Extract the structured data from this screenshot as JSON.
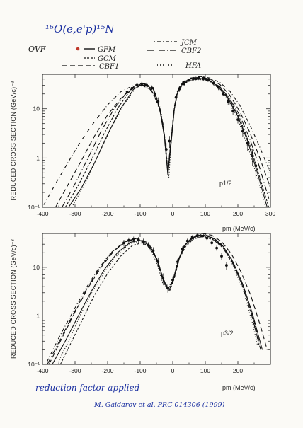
{
  "header": {
    "reaction_label": "¹⁶O(e,e'p)¹⁵N",
    "footer_note": "reduction factor applied",
    "citation": "M. Gaidarov et al. PRC 014306 (1999)"
  },
  "legend": {
    "items": [
      {
        "label": "OVF",
        "style": "point"
      },
      {
        "label": "GFM",
        "style": "solid"
      },
      {
        "label": "GCM",
        "style": "dashed"
      },
      {
        "label": "CBF1",
        "style": "longdash"
      },
      {
        "label": "JCM",
        "style": "dashdot"
      },
      {
        "label": "CBF2",
        "style": "longdashdot"
      },
      {
        "label": "HFA",
        "style": "dotted"
      }
    ]
  },
  "colors": {
    "ink": "#111111",
    "pen_blue": "#1a2fa0",
    "paper": "#fbfaf6",
    "data_point": "#c0392b"
  },
  "chart_data": [
    {
      "type": "line",
      "panel_label": "p1/2",
      "ylabel": "REDUCED CROSS SECTION (GeV/c)⁻³",
      "xlabel": "pm (MeV/c)",
      "y_scale": "log",
      "xlim": [
        -400,
        300
      ],
      "ylim": [
        0.1,
        50
      ],
      "x_ticks": [
        -400,
        -300,
        -200,
        -100,
        0,
        100,
        200,
        300
      ],
      "y_ticks": [
        {
          "v": 0.1,
          "label": "10⁻¹"
        },
        {
          "v": 1,
          "label": "1"
        },
        {
          "v": 10,
          "label": "10"
        }
      ],
      "series": [
        {
          "name": "GFM",
          "style": "solid",
          "x": [
            -320,
            -280,
            -240,
            -200,
            -160,
            -120,
            -90,
            -60,
            -40,
            -25,
            -15,
            -5,
            5,
            15,
            30,
            50,
            80,
            110,
            140,
            170,
            200,
            230,
            260,
            290
          ],
          "y": [
            0.1,
            0.25,
            0.8,
            3,
            10,
            25,
            32,
            25,
            10,
            2.5,
            0.45,
            2,
            10,
            22,
            33,
            40,
            42,
            38,
            28,
            16,
            7,
            2.2,
            0.5,
            0.1
          ]
        },
        {
          "name": "GCM",
          "style": "dashed",
          "x": [
            -330,
            -290,
            -250,
            -210,
            -170,
            -130,
            -95,
            -65,
            -40,
            -25,
            -15,
            -5,
            5,
            15,
            30,
            55,
            85,
            115,
            145,
            175,
            205,
            235,
            265,
            295
          ],
          "y": [
            0.1,
            0.28,
            0.9,
            3.2,
            10,
            24,
            30,
            24,
            10,
            2.6,
            0.5,
            2.2,
            10,
            21,
            31,
            38,
            40,
            36,
            27,
            15,
            6.5,
            2,
            0.45,
            0.1
          ]
        },
        {
          "name": "CBF1",
          "style": "longdash",
          "x": [
            -360,
            -320,
            -280,
            -240,
            -200,
            -160,
            -120,
            -90,
            -60,
            -40,
            -25,
            -15,
            -5,
            5,
            15,
            30,
            55,
            85,
            115,
            145,
            175,
            205,
            235,
            265,
            300
          ],
          "y": [
            0.1,
            0.3,
            0.9,
            2.8,
            7.5,
            16,
            28,
            33,
            26,
            11,
            2.8,
            0.5,
            2.4,
            11,
            23,
            34,
            41,
            44,
            40,
            31,
            19,
            9,
            3.5,
            1.1,
            0.25
          ]
        },
        {
          "name": "JCM",
          "style": "dashdot",
          "x": [
            -400,
            -360,
            -320,
            -280,
            -240,
            -200,
            -160,
            -120,
            -90,
            -60,
            -40,
            -25,
            -15,
            -5,
            5,
            15,
            30,
            55,
            85,
            115,
            145,
            175,
            205,
            235,
            265,
            300
          ],
          "y": [
            0.1,
            0.3,
            0.85,
            2.3,
            5.5,
            12,
            22,
            30,
            33,
            27,
            11,
            2.8,
            0.55,
            2.5,
            11,
            24,
            35,
            42,
            45,
            42,
            34,
            23,
            12,
            5,
            1.8,
            0.5
          ]
        },
        {
          "name": "CBF2",
          "style": "longdashdot",
          "x": [
            -340,
            -300,
            -260,
            -220,
            -180,
            -140,
            -110,
            -80,
            -50,
            -30,
            -15,
            -5,
            5,
            15,
            30,
            55,
            85,
            115,
            145,
            175,
            205,
            235,
            265,
            295
          ],
          "y": [
            0.1,
            0.3,
            1,
            3.5,
            10,
            22,
            30,
            30,
            17,
            5,
            0.5,
            2.3,
            10.5,
            22,
            32,
            39,
            41,
            37,
            28,
            16,
            7.5,
            2.6,
            0.7,
            0.15
          ]
        },
        {
          "name": "HFA",
          "style": "dotted",
          "x": [
            -310,
            -270,
            -230,
            -190,
            -150,
            -115,
            -85,
            -55,
            -35,
            -20,
            -12,
            -5,
            5,
            15,
            30,
            55,
            85,
            115,
            145,
            175,
            205,
            235,
            265,
            285
          ],
          "y": [
            0.1,
            0.3,
            1.1,
            4,
            12,
            26,
            31,
            22,
            8,
            1.5,
            0.4,
            2,
            9.5,
            21,
            31,
            38,
            39,
            35,
            25,
            13,
            5,
            1.4,
            0.3,
            0.1
          ]
        }
      ],
      "points": {
        "name": "OVF",
        "x": [
          -140,
          -125,
          -110,
          -95,
          -80,
          -65,
          -55,
          -45,
          -20,
          -10,
          10,
          20,
          35,
          50,
          65,
          80,
          95,
          110,
          125,
          140,
          155,
          170,
          185,
          200,
          215,
          230,
          245,
          255
        ],
        "y": [
          22,
          26,
          30,
          32,
          30,
          26,
          20,
          14,
          1.5,
          2.2,
          17,
          25,
          32,
          38,
          41,
          43,
          42,
          39,
          33,
          27,
          20,
          14,
          9,
          6,
          3.5,
          2,
          1.1,
          0.7
        ],
        "err": [
          4,
          4,
          4,
          4,
          4,
          4,
          3,
          3,
          0.5,
          0.6,
          3,
          3,
          3,
          3,
          3,
          3,
          3,
          3,
          3,
          3,
          2,
          2,
          1.5,
          1,
          0.8,
          0.6,
          0.4,
          0.3
        ]
      }
    },
    {
      "type": "line",
      "panel_label": "p3/2",
      "ylabel": "REDUCED CROSS SECTION (GeV/c)⁻³",
      "xlabel": "pm (MeV/c)",
      "y_scale": "log",
      "xlim": [
        -400,
        300
      ],
      "ylim": [
        0.1,
        50
      ],
      "x_ticks": [
        -400,
        -300,
        -200,
        -100,
        0,
        100,
        200
      ],
      "y_ticks": [
        {
          "v": 0.1,
          "label": "10⁻¹"
        },
        {
          "v": 1,
          "label": "1"
        },
        {
          "v": 10,
          "label": "10"
        }
      ],
      "series": [
        {
          "name": "GFM",
          "style": "solid",
          "x": [
            -370,
            -330,
            -290,
            -250,
            -210,
            -170,
            -130,
            -100,
            -70,
            -45,
            -25,
            -10,
            5,
            20,
            40,
            65,
            95,
            125,
            155,
            185,
            215,
            245,
            275
          ],
          "y": [
            0.1,
            0.3,
            1,
            3.2,
            9,
            20,
            33,
            36,
            28,
            13,
            4.5,
            3.5,
            6.5,
            16,
            30,
            42,
            46,
            40,
            27,
            13,
            4.5,
            1.1,
            0.2
          ]
        },
        {
          "name": "GCM",
          "style": "dashed",
          "x": [
            -345,
            -310,
            -275,
            -240,
            -200,
            -160,
            -125,
            -95,
            -65,
            -45,
            -25,
            -10,
            5,
            20,
            40,
            65,
            95,
            125,
            155,
            185,
            215,
            245,
            265
          ],
          "y": [
            0.1,
            0.3,
            0.9,
            2.7,
            7.5,
            17,
            28,
            32,
            26,
            13,
            4.5,
            3.2,
            6,
            15,
            27,
            39,
            43,
            37,
            25,
            12,
            4,
            0.9,
            0.25
          ]
        },
        {
          "name": "CBF1",
          "style": "longdash",
          "x": [
            -380,
            -340,
            -300,
            -260,
            -220,
            -180,
            -140,
            -110,
            -80,
            -50,
            -30,
            -15,
            0,
            15,
            35,
            60,
            90,
            120,
            150,
            180,
            210,
            240,
            270,
            290
          ],
          "y": [
            0.1,
            0.35,
            1.2,
            3.8,
            10,
            22,
            35,
            40,
            33,
            16,
            6,
            3.6,
            5,
            13,
            28,
            42,
            50,
            46,
            34,
            19,
            8,
            2.6,
            0.6,
            0.2
          ]
        },
        {
          "name": "JCM",
          "style": "dashdot",
          "x": [
            -390,
            -350,
            -310,
            -270,
            -230,
            -190,
            -150,
            -115,
            -85,
            -55,
            -35,
            -15,
            0,
            15,
            35,
            60,
            90,
            120,
            150,
            180,
            210,
            240,
            265
          ],
          "y": [
            0.1,
            0.35,
            1.1,
            3.4,
            9,
            20,
            33,
            39,
            34,
            18,
            7,
            3.8,
            5.2,
            13,
            27,
            41,
            48,
            43,
            30,
            15,
            5.5,
            1.4,
            0.3
          ]
        },
        {
          "name": "CBF2",
          "style": "longdashdot",
          "x": [
            -385,
            -345,
            -305,
            -265,
            -225,
            -185,
            -145,
            -112,
            -82,
            -52,
            -32,
            -15,
            0,
            15,
            35,
            60,
            90,
            120,
            150,
            180,
            210,
            240,
            270
          ],
          "y": [
            0.1,
            0.33,
            1.1,
            3.5,
            9.5,
            21,
            34,
            38,
            32,
            16,
            6,
            3.5,
            5,
            13,
            27,
            40,
            46,
            41,
            28,
            14,
            5,
            1.2,
            0.2
          ]
        },
        {
          "name": "HFA",
          "style": "dotted",
          "x": [
            -355,
            -320,
            -285,
            -250,
            -210,
            -170,
            -135,
            -105,
            -75,
            -50,
            -30,
            -12,
            5,
            20,
            40,
            65,
            95,
            125,
            155,
            185,
            215,
            245,
            260
          ],
          "y": [
            0.1,
            0.3,
            1,
            2.9,
            8,
            18,
            30,
            34,
            27,
            13,
            4.5,
            3.3,
            6,
            15,
            28,
            40,
            44,
            38,
            25,
            11,
            3.5,
            0.7,
            0.25
          ]
        }
      ],
      "points": {
        "name": "OVF",
        "x": [
          -150,
          -135,
          -120,
          -105,
          -90,
          -75,
          -60,
          -45,
          -30,
          -15,
          0,
          15,
          30,
          45,
          60,
          75,
          90,
          105,
          120,
          135,
          150,
          165
        ],
        "y": [
          32,
          36,
          38,
          37,
          34,
          29,
          22,
          13,
          6,
          3.8,
          5.5,
          13,
          24,
          35,
          42,
          45,
          44,
          40,
          32,
          25,
          17,
          11
        ],
        "err": [
          5,
          5,
          5,
          5,
          5,
          4,
          4,
          3,
          1.5,
          0.8,
          1,
          2,
          3,
          4,
          4,
          4,
          4,
          4,
          4,
          3,
          3,
          2
        ]
      }
    }
  ]
}
